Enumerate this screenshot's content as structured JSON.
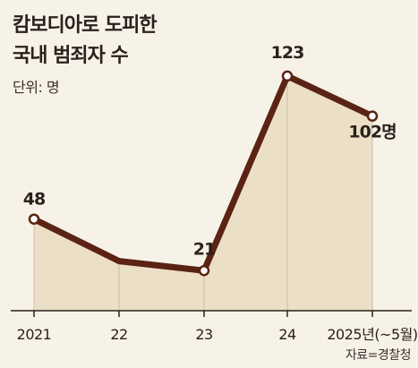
{
  "title_lines": [
    "캄보디아로 도피한",
    "국내 범죄자 수"
  ],
  "unit_label": "단위: 명",
  "source_label": "자료=경찰청",
  "colors": {
    "line": "#5a2313",
    "area": "#ecdfc7",
    "background": "#f7f2e7",
    "axis": "#2a211c",
    "marker_fill": "#ffffff"
  },
  "chart_data": {
    "type": "line",
    "categories": [
      "2021",
      "22",
      "23",
      "24",
      "2025년(~5월)"
    ],
    "values": [
      48,
      26,
      21,
      123,
      102
    ],
    "data_labels": [
      "48",
      "",
      "21",
      "123",
      "102명"
    ],
    "ylim": [
      0,
      130
    ],
    "grid": false,
    "legend": "none",
    "area_fill": true
  }
}
